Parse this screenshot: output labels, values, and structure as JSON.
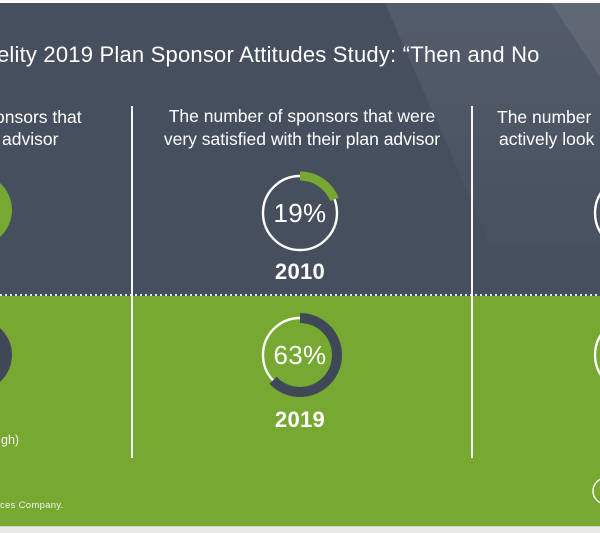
{
  "colors": {
    "slate_background": "#464f5e",
    "green_background": "#76a832",
    "arc_dark": "#3e4857",
    "text_white": "#ffffff",
    "bottom_strip": "#e9eae5"
  },
  "header": {
    "title_visible": "elity 2019 Plan Sponsor Attitudes Study: “Then and No"
  },
  "columns": {
    "left": {
      "heading_line1": "onsors that",
      "heading_line2": "advisor",
      "footnote_visible": "gh)"
    },
    "middle": {
      "heading_line1": "The number of sponsors that were",
      "heading_line2": "very satisfied with their plan advisor",
      "then": {
        "percent_label": "19%",
        "year_label": "2010"
      },
      "now": {
        "percent_label": "63%",
        "year_label": "2019"
      }
    },
    "right": {
      "heading_line1": "The number",
      "heading_line2": "actively look"
    }
  },
  "footer": {
    "text_visible": "ces Company."
  },
  "chart_data": {
    "type": "pie",
    "subtype": "donut",
    "metric": "The number of sponsors that were very satisfied with their plan advisor",
    "categories": [
      "2010",
      "2019"
    ],
    "values": [
      19,
      63
    ],
    "units": "%",
    "legend_position": "none",
    "layout": "2010 row on slate background with green arc; 2019 row on green background with slate arc; adjacent comparison columns cropped at frame edges"
  }
}
